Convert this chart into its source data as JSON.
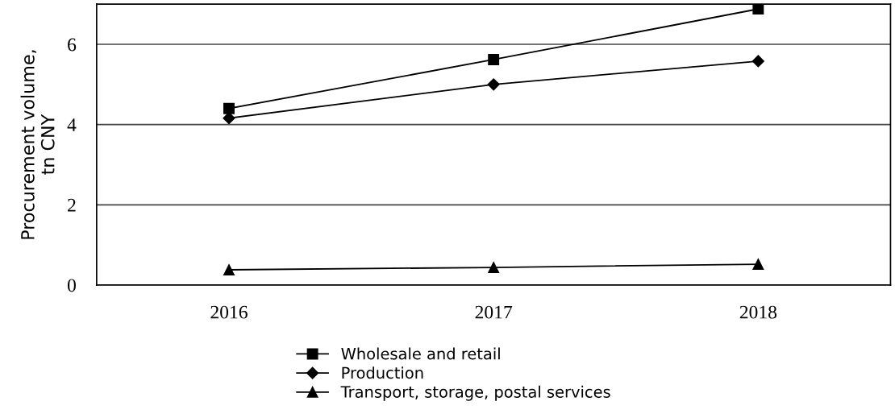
{
  "chart_data": {
    "type": "line",
    "ylabel": "Procurement volume,\ntn CNY",
    "categories": [
      "2016",
      "2017",
      "2018"
    ],
    "series": [
      {
        "name": "Wholesale and retail",
        "color": "#000000",
        "marker": "square",
        "values": [
          4.4,
          5.62,
          6.88
        ]
      },
      {
        "name": "Production",
        "color": "#000000",
        "marker": "diamond",
        "values": [
          4.16,
          5.0,
          5.58
        ]
      },
      {
        "name": "Transport, storage, postal services",
        "color": "#000000",
        "marker": "triangle",
        "values": [
          0.38,
          0.44,
          0.52
        ]
      }
    ],
    "ylim": [
      0,
      7
    ],
    "yticks": [
      0,
      2,
      4,
      6
    ],
    "grid": "y",
    "legend": "bottom",
    "line_style": "solid"
  }
}
